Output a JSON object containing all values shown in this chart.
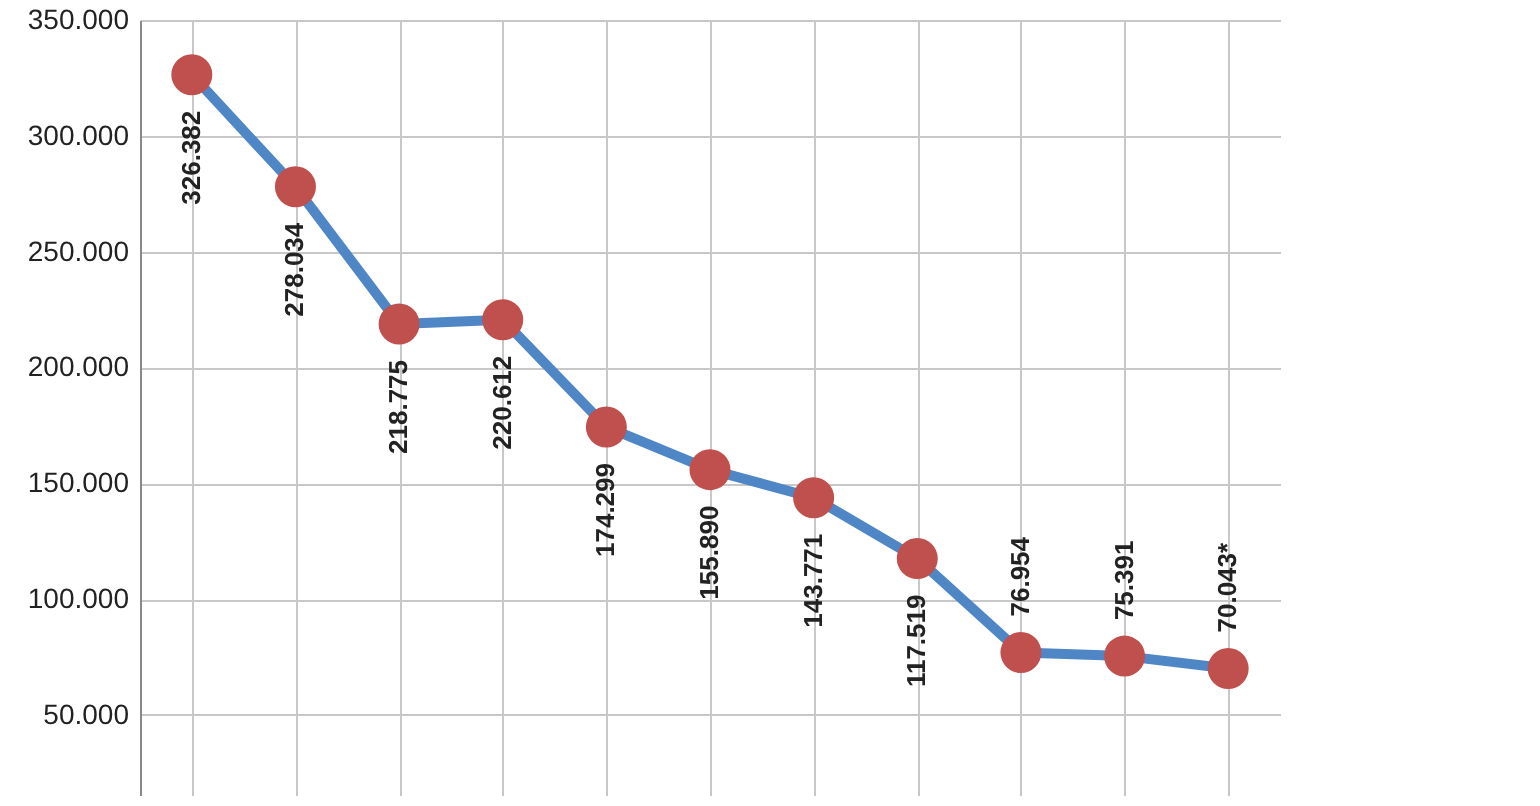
{
  "chart_data": {
    "type": "line",
    "categories": [
      null,
      null,
      null,
      null,
      null,
      null,
      null,
      null,
      null,
      null,
      null
    ],
    "series": [
      {
        "color": "#4f86c6",
        "values": [
          326382,
          278034,
          218775,
          220612,
          174299,
          155890,
          143771,
          117519,
          76954,
          75391,
          70043
        ],
        "value_labels": [
          "326.382",
          "278.034",
          "218.775",
          "220.612",
          "174.299",
          "155.890",
          "143.771",
          "117.519",
          "76.954",
          "75.391",
          "70.043*"
        ]
      }
    ],
    "marker": "circle",
    "ylim": [
      15000,
      350000
    ],
    "yticks": [
      {
        "value": 50000,
        "label": "50.000"
      },
      {
        "value": 100000,
        "label": "100.000"
      },
      {
        "value": 150000,
        "label": "150.000"
      },
      {
        "value": 200000,
        "label": "200.000"
      },
      {
        "value": 250000,
        "label": "250.000"
      },
      {
        "value": 300000,
        "label": "300.000"
      },
      {
        "value": 350000,
        "label": "350.000"
      }
    ],
    "grid": true,
    "tick_labels": "y"
  }
}
